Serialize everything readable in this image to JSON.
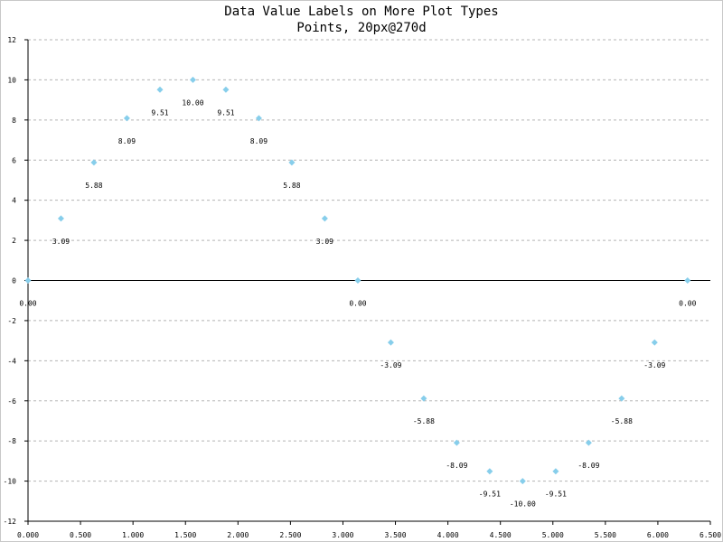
{
  "chart_data": {
    "type": "scatter",
    "title": "Data Value Labels on More Plot Types",
    "subtitle": "Points, 20px@270d",
    "xlabel": "",
    "ylabel": "",
    "xlim": [
      0,
      6.5
    ],
    "ylim": [
      -12,
      12
    ],
    "x_ticks": [
      "0.000",
      "0.500",
      "1.000",
      "1.500",
      "2.000",
      "2.500",
      "3.000",
      "3.500",
      "4.000",
      "4.500",
      "5.000",
      "5.500",
      "6.000",
      "6.500"
    ],
    "y_ticks": [
      "12",
      "10",
      "8",
      "6",
      "4",
      "2",
      "0",
      "-2",
      "-4",
      "-6",
      "-8",
      "-10",
      "-12"
    ],
    "grid": "horizontal dashed",
    "marker_color": "#87ceeb",
    "series": [
      {
        "points": [
          {
            "x": 0.0,
            "y": 0.0,
            "label": "0.00"
          },
          {
            "x": 0.314,
            "y": 3.09,
            "label": "3.09"
          },
          {
            "x": 0.628,
            "y": 5.88,
            "label": "5.88"
          },
          {
            "x": 0.942,
            "y": 8.09,
            "label": "8.09"
          },
          {
            "x": 1.257,
            "y": 9.51,
            "label": "9.51"
          },
          {
            "x": 1.571,
            "y": 10.0,
            "label": "10.00"
          },
          {
            "x": 1.885,
            "y": 9.51,
            "label": "9.51"
          },
          {
            "x": 2.199,
            "y": 8.09,
            "label": "8.09"
          },
          {
            "x": 2.513,
            "y": 5.88,
            "label": "5.88"
          },
          {
            "x": 2.827,
            "y": 3.09,
            "label": "3.09"
          },
          {
            "x": 3.142,
            "y": 0.0,
            "label": "0.00"
          },
          {
            "x": 3.456,
            "y": -3.09,
            "label": "-3.09"
          },
          {
            "x": 3.77,
            "y": -5.88,
            "label": "-5.88"
          },
          {
            "x": 4.084,
            "y": -8.09,
            "label": "-8.09"
          },
          {
            "x": 4.398,
            "y": -9.51,
            "label": "-9.51"
          },
          {
            "x": 4.712,
            "y": -10.0,
            "label": "-10.00"
          },
          {
            "x": 5.027,
            "y": -9.51,
            "label": "-9.51"
          },
          {
            "x": 5.341,
            "y": -8.09,
            "label": "-8.09"
          },
          {
            "x": 5.655,
            "y": -5.88,
            "label": "-5.88"
          },
          {
            "x": 5.969,
            "y": -3.09,
            "label": "-3.09"
          },
          {
            "x": 6.283,
            "y": 0.0,
            "label": "0.00"
          }
        ]
      }
    ]
  }
}
